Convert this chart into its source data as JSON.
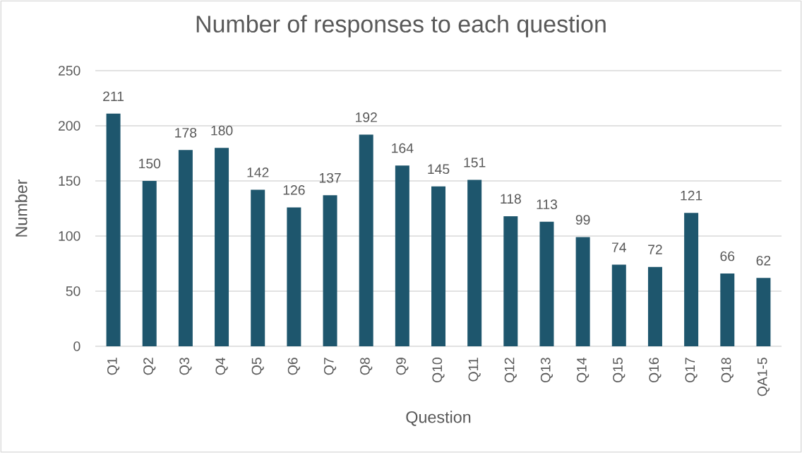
{
  "chart_data": {
    "type": "bar",
    "title": "Number of responses to each question",
    "xlabel": "Question",
    "ylabel": "Number",
    "categories": [
      "Q1",
      "Q2",
      "Q3",
      "Q4",
      "Q5",
      "Q6",
      "Q7",
      "Q8",
      "Q9",
      "Q10",
      "Q11",
      "Q12",
      "Q13",
      "Q14",
      "Q15",
      "Q16",
      "Q17",
      "Q18",
      "QA1-5"
    ],
    "values": [
      211,
      150,
      178,
      180,
      142,
      126,
      137,
      192,
      164,
      145,
      151,
      118,
      113,
      99,
      74,
      72,
      121,
      66,
      62
    ],
    "color": "#1e566d",
    "ylim": [
      0,
      250
    ],
    "yticks": [
      0,
      50,
      100,
      150,
      200,
      250
    ],
    "grid": "y",
    "data_labels": true
  }
}
